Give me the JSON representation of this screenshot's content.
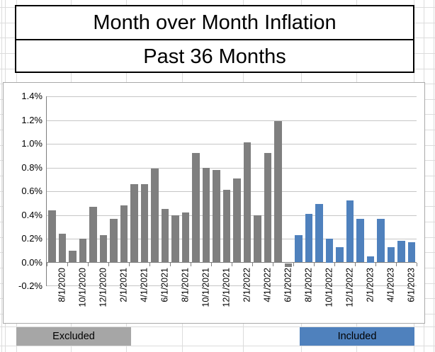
{
  "title": {
    "line1": "Month over Month Inflation",
    "line2": "Past 36 Months"
  },
  "legend": {
    "excluded_label": "Excluded",
    "included_label": "Included"
  },
  "colors": {
    "excluded_bar": "#7f7f7f",
    "included_bar": "#4f81bd",
    "excluded_cell_fill": "#a6a6a6",
    "included_cell_fill": "#4f81bd"
  },
  "chart_data": {
    "type": "bar",
    "title": "Month over Month Inflation — Past 36 Months",
    "xlabel": "",
    "ylabel": "",
    "ylim_percent": [
      -0.2,
      1.4
    ],
    "y_tick_step_percent": 0.2,
    "y_tick_labels": [
      "1.4%",
      "1.2%",
      "1.0%",
      "0.8%",
      "0.6%",
      "0.4%",
      "0.2%",
      "0.0%",
      "-0.2%"
    ],
    "x_tick_labels": [
      "8/1/2020",
      "10/1/2020",
      "12/1/2020",
      "2/1/2021",
      "4/1/2021",
      "6/1/2021",
      "8/1/2021",
      "10/1/2021",
      "12/1/2021",
      "2/1/2022",
      "4/1/2022",
      "6/1/2022",
      "8/1/2022",
      "10/1/2022",
      "12/1/2022",
      "2/1/2023",
      "4/1/2023",
      "6/1/2023"
    ],
    "grid": true,
    "legend_position": "bottom-cells",
    "series": [
      {
        "name": "Excluded",
        "color": "#7f7f7f",
        "categories": [
          "8/1/2020",
          "9/1/2020",
          "10/1/2020",
          "11/1/2020",
          "12/1/2020",
          "1/1/2021",
          "2/1/2021",
          "3/1/2021",
          "4/1/2021",
          "5/1/2021",
          "6/1/2021",
          "7/1/2021",
          "8/1/2021",
          "9/1/2021",
          "10/1/2021",
          "11/1/2021",
          "12/1/2021",
          "1/1/2022",
          "2/1/2022",
          "3/1/2022",
          "4/1/2022",
          "5/1/2022",
          "6/1/2022",
          "7/1/2022"
        ],
        "values_percent": [
          0.44,
          0.24,
          0.1,
          0.2,
          0.47,
          0.23,
          0.37,
          0.48,
          0.66,
          0.66,
          0.79,
          0.45,
          0.4,
          0.42,
          0.92,
          0.8,
          0.78,
          0.61,
          0.71,
          1.01,
          0.4,
          0.92,
          1.19,
          -0.03
        ]
      },
      {
        "name": "Included",
        "color": "#4f81bd",
        "categories": [
          "8/1/2022",
          "9/1/2022",
          "10/1/2022",
          "11/1/2022",
          "12/1/2022",
          "1/1/2023",
          "2/1/2023",
          "3/1/2023",
          "4/1/2023",
          "5/1/2023",
          "6/1/2023",
          "7/1/2023"
        ],
        "values_percent": [
          0.23,
          0.41,
          0.49,
          0.2,
          0.13,
          0.52,
          0.37,
          0.05,
          0.37,
          0.13,
          0.18,
          0.17
        ]
      }
    ]
  }
}
